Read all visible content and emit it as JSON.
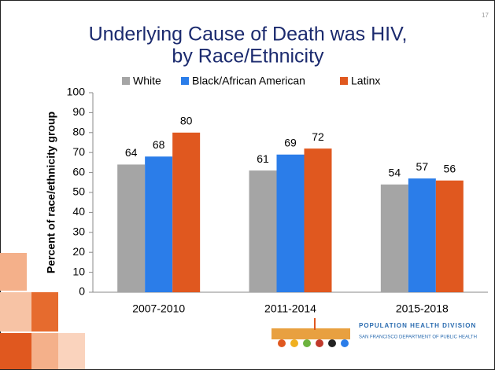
{
  "chart_data": {
    "type": "bar",
    "title": [
      "Underlying Cause of Death was HIV,",
      "by Race/Ethnicity"
    ],
    "ylabel": "Percent of race/ethnicity group",
    "categories": [
      "2007-2010",
      "2011-2014",
      "2015-2018"
    ],
    "series": [
      {
        "name": "White",
        "color": "#a5a5a5",
        "values": [
          64,
          61,
          54
        ]
      },
      {
        "name": "Black/African American",
        "color": "#2b7de9",
        "values": [
          68,
          69,
          57
        ]
      },
      {
        "name": "Latinx",
        "color": "#e0581f",
        "values": [
          80,
          72,
          56
        ]
      }
    ],
    "ylim": [
      0,
      100
    ],
    "yticks": [
      0,
      10,
      20,
      30,
      40,
      50,
      60,
      70,
      80,
      90,
      100
    ],
    "grid": false,
    "legend": "top",
    "data_labels": true
  },
  "slide": {
    "page_number": "17",
    "logo_title": "POPULATION HEALTH DIVISION",
    "logo_subtitle": "SAN FRANCISCO DEPARTMENT OF PUBLIC HEALTH"
  }
}
